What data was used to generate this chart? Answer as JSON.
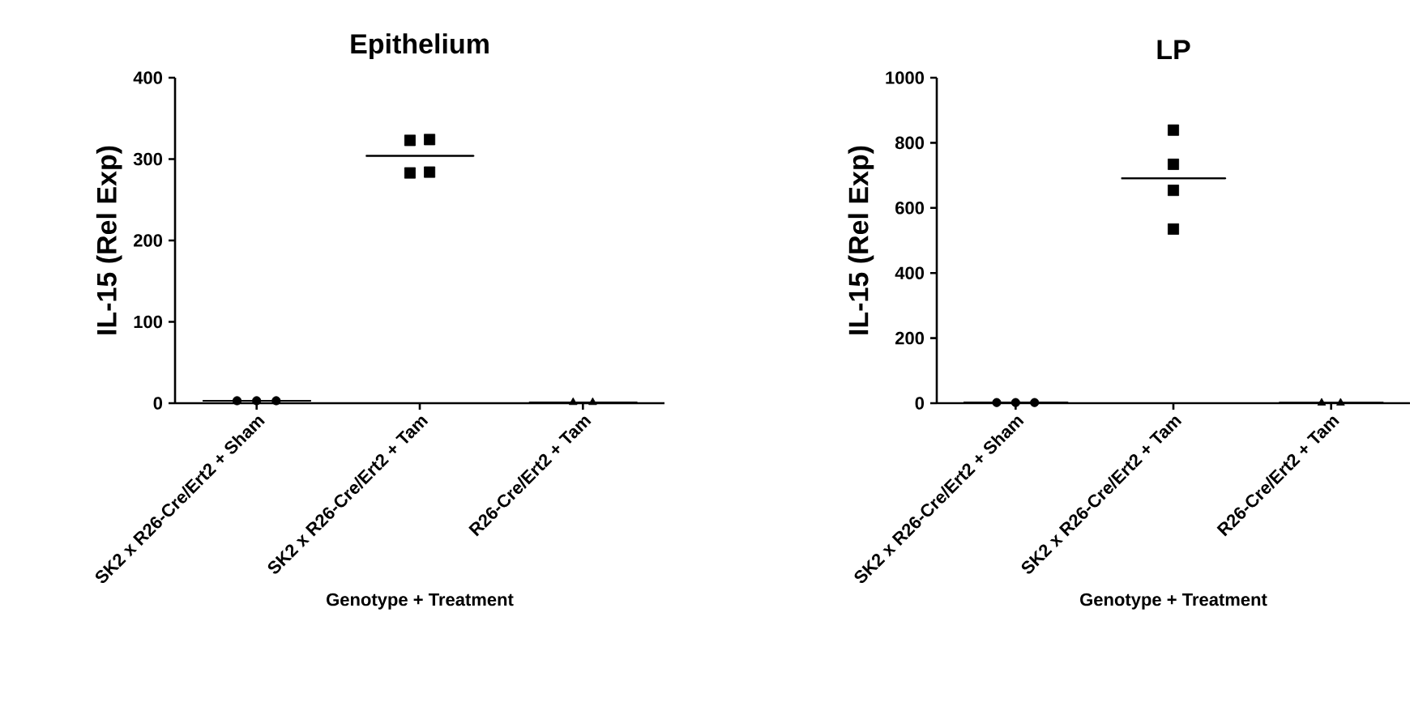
{
  "chart_data": [
    {
      "type": "scatter",
      "title": "Epithelium",
      "xlabel": "Genotype + Treatment",
      "ylabel": "IL-15 (Rel Exp)",
      "categories": [
        "SK2 x R26-Cre/Ert2 + Sham",
        "SK2 x R26-Cre/Ert2 + Tam",
        "R26-Cre/Ert2 + Tam"
      ],
      "ylim": [
        0,
        400
      ],
      "yticks": [
        0,
        100,
        200,
        300,
        400
      ],
      "series": [
        {
          "type": "scatter",
          "marker": "circle",
          "color": "#000000",
          "x": [
            "SK2 x R26-Cre/Ert2 + Sham",
            "SK2 x R26-Cre/Ert2 + Sham",
            "SK2 x R26-Cre/Ert2 + Sham"
          ],
          "values": [
            3,
            3,
            3
          ]
        },
        {
          "type": "scatter",
          "marker": "square",
          "color": "#000000",
          "x": [
            "SK2 x R26-Cre/Ert2 + Tam",
            "SK2 x R26-Cre/Ert2 + Tam",
            "SK2 x R26-Cre/Ert2 + Tam",
            "SK2 x R26-Cre/Ert2 + Tam"
          ],
          "values": [
            324,
            323,
            283,
            284
          ]
        },
        {
          "type": "scatter",
          "marker": "triangle",
          "color": "#000000",
          "x": [
            "R26-Cre/Ert2 + Tam",
            "R26-Cre/Ert2 + Tam"
          ],
          "values": [
            1,
            1
          ]
        },
        {
          "type": "box",
          "color": "#000000",
          "boxes": [
            {
              "low": 3,
              "q1": 3,
              "median": 3,
              "q3": 3,
              "high": 3
            },
            {
              "low": 304,
              "q1": 304,
              "median": 304,
              "q3": 304,
              "high": 304
            },
            {
              "low": 1,
              "q1": 1,
              "median": 1,
              "q3": 1,
              "high": 1
            }
          ]
        }
      ]
    },
    {
      "type": "scatter",
      "title": "LP",
      "xlabel": "Genotype + Treatment",
      "ylabel": "IL-15 (Rel Exp)",
      "categories": [
        "SK2 x R26-Cre/Ert2 + Sham",
        "SK2 x R26-Cre/Ert2 + Tam",
        "R26-Cre/Ert2 + Tam"
      ],
      "ylim": [
        0,
        1000
      ],
      "yticks": [
        0,
        200,
        400,
        600,
        800,
        1000
      ],
      "series": [
        {
          "type": "scatter",
          "marker": "circle",
          "color": "#000000",
          "x": [
            "SK2 x R26-Cre/Ert2 + Sham",
            "SK2 x R26-Cre/Ert2 + Sham",
            "SK2 x R26-Cre/Ert2 + Sham"
          ],
          "values": [
            2,
            2,
            2
          ]
        },
        {
          "type": "scatter",
          "marker": "square",
          "color": "#000000",
          "x": [
            "SK2 x R26-Cre/Ert2 + Tam",
            "SK2 x R26-Cre/Ert2 + Tam",
            "SK2 x R26-Cre/Ert2 + Tam",
            "SK2 x R26-Cre/Ert2 + Tam"
          ],
          "values": [
            839,
            734,
            654,
            535
          ]
        },
        {
          "type": "scatter",
          "marker": "triangle",
          "color": "#000000",
          "x": [
            "R26-Cre/Ert2 + Tam",
            "R26-Cre/Ert2 + Tam"
          ],
          "values": [
            1,
            1
          ]
        },
        {
          "type": "box",
          "color": "#000000",
          "boxes": [
            {
              "low": 2,
              "q1": 2,
              "median": 2,
              "q3": 2,
              "high": 2
            },
            {
              "low": 691,
              "q1": 691,
              "median": 691,
              "q3": 691,
              "high": 691
            },
            {
              "low": 1,
              "q1": 1,
              "median": 1,
              "q3": 1,
              "high": 1
            }
          ]
        }
      ]
    }
  ]
}
